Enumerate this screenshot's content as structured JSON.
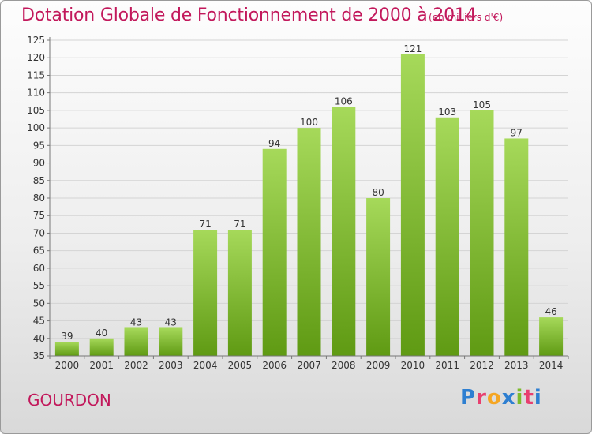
{
  "title": "Dotation Globale de Fonctionnement de 2000 à 2014",
  "subtitle": "(en milliers d'€)",
  "commune": "GOURDON",
  "logo": {
    "text": "Proxiti",
    "letter_colors": [
      "#2e7fd1",
      "#e83f6f",
      "#f5a623",
      "#2e7fd1",
      "#7cbb2a",
      "#e83f6f",
      "#2e7fd1"
    ]
  },
  "colors": {
    "title": "#c2185b",
    "bar_top": "#a6d95a",
    "bar_bottom": "#5f9a13"
  },
  "chart_data": {
    "type": "bar",
    "title": "Dotation Globale de Fonctionnement de 2000 à 2014",
    "subtitle": "(en milliers d'€)",
    "categories": [
      "2000",
      "2001",
      "2002",
      "2003",
      "2004",
      "2005",
      "2006",
      "2007",
      "2008",
      "2009",
      "2010",
      "2011",
      "2012",
      "2013",
      "2014"
    ],
    "values": [
      39,
      40,
      43,
      43,
      71,
      71,
      94,
      100,
      106,
      80,
      121,
      103,
      105,
      97,
      46
    ],
    "data_labels": [
      "39",
      "40",
      "43",
      "43",
      "71",
      "71",
      "94",
      "100",
      "106",
      "80",
      "121",
      "103",
      "105",
      "97",
      "46"
    ],
    "ylim": [
      35,
      125
    ],
    "yticks": [
      35,
      40,
      45,
      50,
      55,
      60,
      65,
      70,
      75,
      80,
      85,
      90,
      95,
      100,
      105,
      110,
      115,
      120,
      125
    ],
    "grid": true,
    "legend": "none"
  }
}
